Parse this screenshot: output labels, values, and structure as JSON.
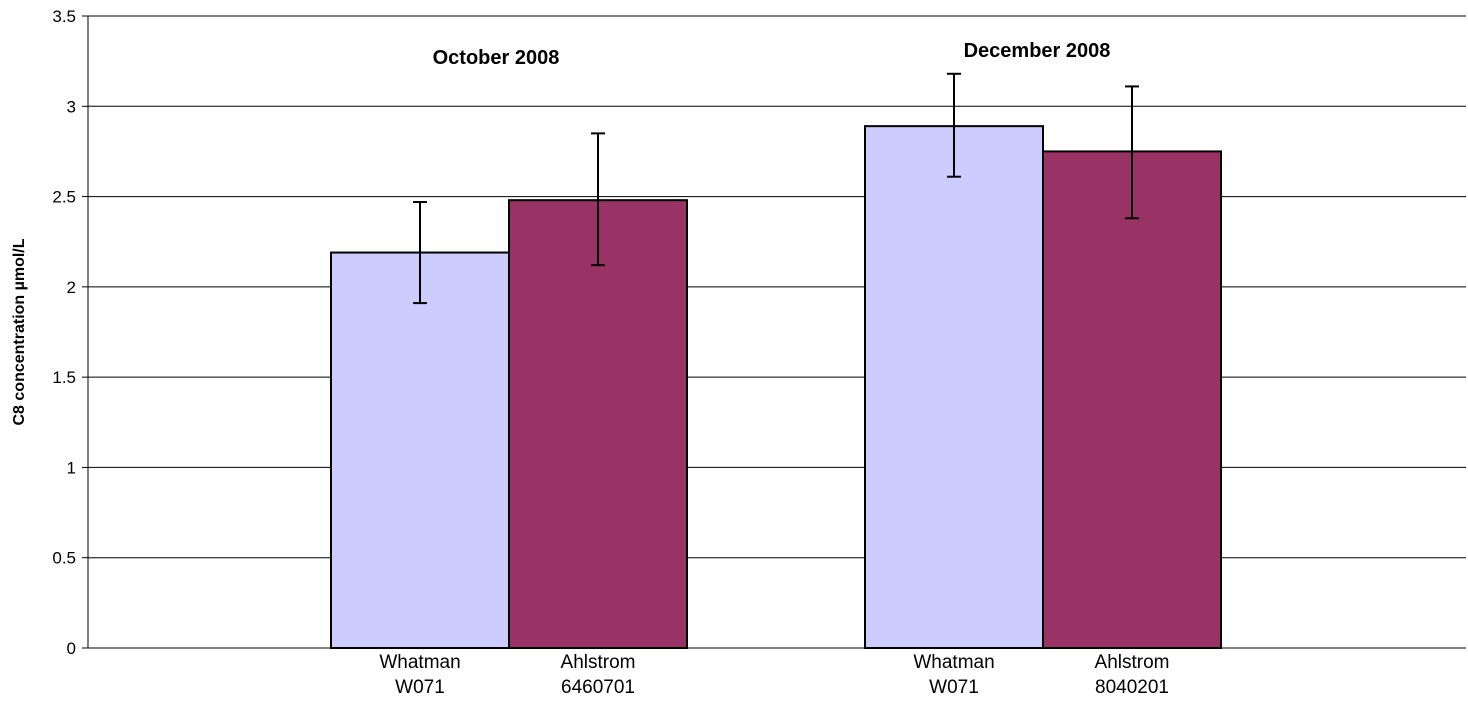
{
  "chart_data": {
    "type": "bar",
    "ylabel": "C8 concentration µmol/L",
    "ylim": [
      0,
      3.5
    ],
    "yticks": [
      0,
      0.5,
      1,
      1.5,
      2,
      2.5,
      3,
      3.5
    ],
    "yticks_text": [
      "0",
      "0.5",
      "1",
      "1.5",
      "2",
      "2.5",
      "3",
      "3.5"
    ],
    "grid": true,
    "groups": [
      {
        "title": "October 2008",
        "bars": [
          {
            "label_line1": "Whatman",
            "label_line2": "W071",
            "value": 2.19,
            "error_low": 1.91,
            "error_high": 2.47,
            "color": "#ccccff"
          },
          {
            "label_line1": "Ahlstrom",
            "label_line2": "6460701",
            "value": 2.48,
            "error_low": 2.12,
            "error_high": 2.85,
            "color": "#993366"
          }
        ]
      },
      {
        "title": "December 2008",
        "bars": [
          {
            "label_line1": "Whatman",
            "label_line2": "W071",
            "value": 2.89,
            "error_low": 2.61,
            "error_high": 3.18,
            "color": "#ccccff"
          },
          {
            "label_line1": "Ahlstrom",
            "label_line2": "8040201",
            "value": 2.75,
            "error_low": 2.38,
            "error_high": 3.11,
            "color": "#993366"
          }
        ]
      }
    ]
  }
}
